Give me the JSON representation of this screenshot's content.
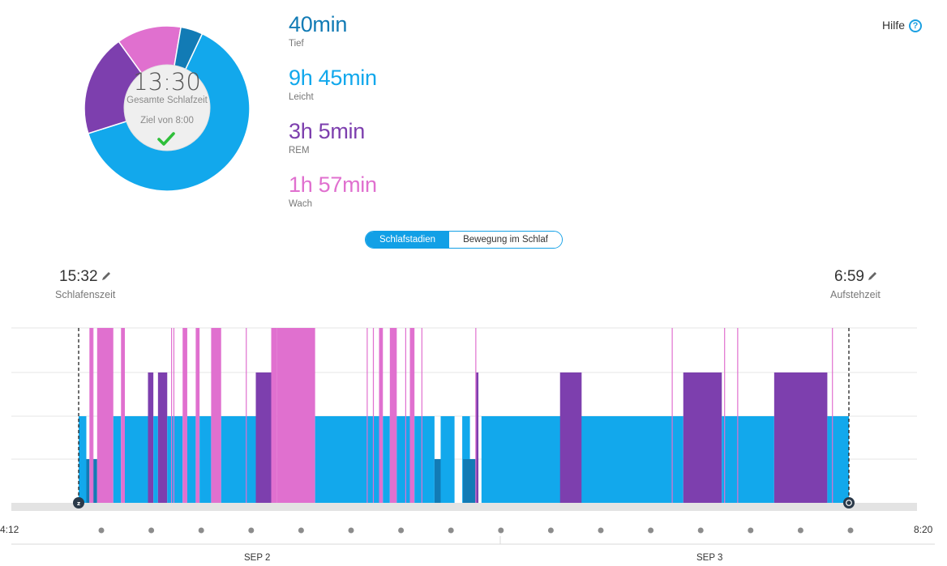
{
  "summary": {
    "total_time": "13:30",
    "total_label": "Gesamte Schlafzeit",
    "goal_label": "Ziel von 8:00",
    "goal_met_icon": "checkmark-icon"
  },
  "stages": [
    {
      "key": "deep",
      "value": "40min",
      "label": "Tief",
      "minutes": 40,
      "color": "#127bb5"
    },
    {
      "key": "light",
      "value": "9h 45min",
      "label": "Leicht",
      "minutes": 585,
      "color": "#12a8ec"
    },
    {
      "key": "rem",
      "value": "3h 5min",
      "label": "REM",
      "minutes": 185,
      "color": "#7d3fae"
    },
    {
      "key": "awake",
      "value": "1h 57min",
      "label": "Wach",
      "minutes": 117,
      "color": "#e070cf"
    }
  ],
  "help": {
    "label": "Hilfe",
    "icon": "help-circle-icon"
  },
  "view_toggle": {
    "active": "Schlafstadien",
    "inactive": "Bewegung im Schlaf"
  },
  "sleep_time": {
    "value": "15:32",
    "label": "Schlafenszeit",
    "icon": "pencil-icon"
  },
  "wake_time": {
    "value": "6:59",
    "label": "Aufstehzeit",
    "icon": "pencil-icon"
  },
  "chart_data": {
    "type": "area",
    "x_start_label": "4:12",
    "x_end_label": "8:20",
    "dates": [
      "SEP 2",
      "SEP 3"
    ],
    "levels": [
      "Wach",
      "REM",
      "Leicht",
      "Tief"
    ],
    "sleep_start": "15:32",
    "wake_end": "6:59",
    "segments": [
      {
        "stage": "light",
        "t0": 0.0,
        "t1": 0.01
      },
      {
        "stage": "deep",
        "t0": 0.01,
        "t1": 0.014
      },
      {
        "stage": "awake",
        "t0": 0.014,
        "t1": 0.018
      },
      {
        "stage": "deep",
        "t0": 0.018,
        "t1": 0.024
      },
      {
        "stage": "awake",
        "t0": 0.024,
        "t1": 0.045
      },
      {
        "stage": "light",
        "t0": 0.045,
        "t1": 0.055
      },
      {
        "stage": "awake",
        "t0": 0.055,
        "t1": 0.06
      },
      {
        "stage": "light",
        "t0": 0.06,
        "t1": 0.09
      },
      {
        "stage": "rem",
        "t0": 0.09,
        "t1": 0.097
      },
      {
        "stage": "light",
        "t0": 0.097,
        "t1": 0.103
      },
      {
        "stage": "rem",
        "t0": 0.103,
        "t1": 0.115
      },
      {
        "stage": "light",
        "t0": 0.115,
        "t1": 0.135
      },
      {
        "stage": "awake",
        "t0": 0.135,
        "t1": 0.141
      },
      {
        "stage": "light",
        "t0": 0.141,
        "t1": 0.152
      },
      {
        "stage": "awake",
        "t0": 0.152,
        "t1": 0.157
      },
      {
        "stage": "light",
        "t0": 0.157,
        "t1": 0.172
      },
      {
        "stage": "awake",
        "t0": 0.172,
        "t1": 0.185
      },
      {
        "stage": "light",
        "t0": 0.185,
        "t1": 0.23
      },
      {
        "stage": "rem",
        "t0": 0.23,
        "t1": 0.25
      },
      {
        "stage": "awake",
        "t0": 0.25,
        "t1": 0.257
      },
      {
        "stage": "awake",
        "t0": 0.257,
        "t1": 0.307
      },
      {
        "stage": "light",
        "t0": 0.307,
        "t1": 0.39
      },
      {
        "stage": "awake",
        "t0": 0.39,
        "t1": 0.395
      },
      {
        "stage": "light",
        "t0": 0.395,
        "t1": 0.404
      },
      {
        "stage": "awake",
        "t0": 0.404,
        "t1": 0.413
      },
      {
        "stage": "light",
        "t0": 0.413,
        "t1": 0.43
      },
      {
        "stage": "awake",
        "t0": 0.43,
        "t1": 0.436
      },
      {
        "stage": "light",
        "t0": 0.436,
        "t1": 0.462
      },
      {
        "stage": "deep",
        "t0": 0.462,
        "t1": 0.47
      },
      {
        "stage": "light",
        "t0": 0.47,
        "t1": 0.488
      },
      {
        "stage": "light",
        "t0": 0.498,
        "t1": 0.508
      },
      {
        "stage": "deep",
        "t0": 0.499,
        "t1": 0.516
      },
      {
        "stage": "rem",
        "t0": 0.516,
        "t1": 0.519
      },
      {
        "stage": "light",
        "t0": 0.523,
        "t1": 0.7
      },
      {
        "stage": "rem",
        "t0": 0.625,
        "t1": 0.653
      },
      {
        "stage": "light",
        "t0": 0.653,
        "t1": 0.785
      },
      {
        "stage": "rem",
        "t0": 0.785,
        "t1": 0.835
      },
      {
        "stage": "light",
        "t0": 0.835,
        "t1": 0.903
      },
      {
        "stage": "rem",
        "t0": 0.903,
        "t1": 0.972
      },
      {
        "stage": "light",
        "t0": 0.972,
        "t1": 1.0
      }
    ],
    "awake_spikes": [
      0.018,
      0.12,
      0.123,
      0.136,
      0.217,
      0.374,
      0.382,
      0.424,
      0.445,
      0.515,
      0.77,
      0.838,
      0.855,
      0.978
    ]
  }
}
